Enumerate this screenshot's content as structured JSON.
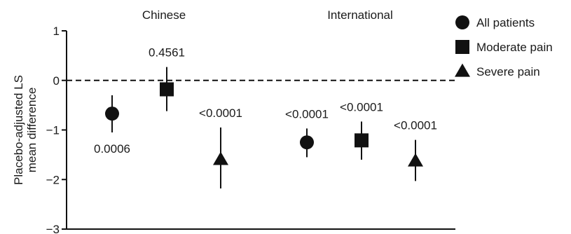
{
  "chart_data": {
    "type": "scatter",
    "ylabel": [
      "Placebo-adjusted LS",
      "mean difference"
    ],
    "ylim": [
      -3,
      1
    ],
    "yticks": [
      1,
      0,
      -1,
      -2,
      -3
    ],
    "ytick_labels": [
      "1",
      "0",
      "−1",
      "−2",
      "−3"
    ],
    "reference_line": 0,
    "groups": [
      "Chinese",
      "International"
    ],
    "series": [
      {
        "name": "All patients",
        "marker": "circle"
      },
      {
        "name": "Moderate pain",
        "marker": "square"
      },
      {
        "name": "Severe pain",
        "marker": "triangle"
      }
    ],
    "points": [
      {
        "group": "Chinese",
        "series": "All patients",
        "value": -0.67,
        "ci": [
          -1.05,
          -0.3
        ],
        "p_value": "0.0006",
        "label_position": "below"
      },
      {
        "group": "Chinese",
        "series": "Moderate pain",
        "value": -0.18,
        "ci": [
          -0.62,
          0.27
        ],
        "p_value": "0.4561",
        "label_position": "above"
      },
      {
        "group": "Chinese",
        "series": "Severe pain",
        "value": -1.6,
        "ci": [
          -2.18,
          -0.95
        ],
        "p_value": "<0.0001",
        "label_position": "above"
      },
      {
        "group": "International",
        "series": "All patients",
        "value": -1.25,
        "ci": [
          -1.55,
          -0.97
        ],
        "p_value": "<0.0001",
        "label_position": "above"
      },
      {
        "group": "International",
        "series": "Moderate pain",
        "value": -1.21,
        "ci": [
          -1.6,
          -0.83
        ],
        "p_value": "<0.0001",
        "label_position": "above"
      },
      {
        "group": "International",
        "series": "Severe pain",
        "value": -1.63,
        "ci": [
          -2.03,
          -1.2
        ],
        "p_value": "<0.0001",
        "label_position": "above"
      }
    ],
    "legend_position": "top-right",
    "grid": false
  }
}
